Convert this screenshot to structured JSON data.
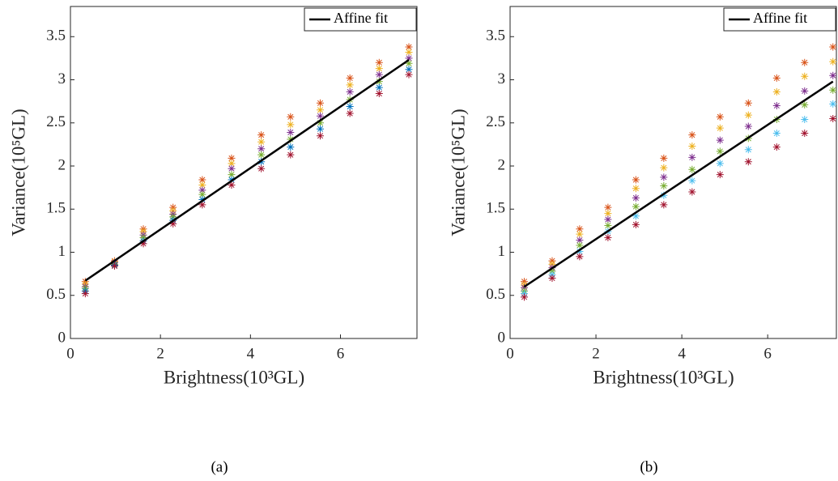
{
  "chart_data": [
    {
      "type": "scatter",
      "caption": "(a)",
      "xlabel": "Brightness(10³GL)",
      "ylabel": "Variance(10⁵GL)",
      "xlim": [
        0,
        7.7
      ],
      "ylim": [
        0,
        3.85
      ],
      "xticks": [
        0,
        2,
        4,
        6
      ],
      "yticks": [
        0,
        0.5,
        1,
        1.5,
        2,
        2.5,
        3,
        3.5
      ],
      "legend": "upper right",
      "box": true,
      "x": [
        0.33,
        0.98,
        1.62,
        2.28,
        2.93,
        3.58,
        4.24,
        4.89,
        5.55,
        6.21,
        6.86,
        7.52
      ],
      "series": [
        {
          "color": "#d95319",
          "values": [
            0.66,
            0.9,
            1.27,
            1.52,
            1.84,
            2.09,
            2.36,
            2.57,
            2.73,
            3.02,
            3.2,
            3.38
          ]
        },
        {
          "color": "#edb120",
          "values": [
            0.63,
            0.89,
            1.24,
            1.48,
            1.78,
            2.03,
            2.28,
            2.48,
            2.65,
            2.94,
            3.13,
            3.32
          ]
        },
        {
          "color": "#7e2f8e",
          "values": [
            0.6,
            0.88,
            1.2,
            1.44,
            1.72,
            1.97,
            2.2,
            2.39,
            2.58,
            2.86,
            3.06,
            3.25
          ]
        },
        {
          "color": "#77ac30",
          "values": [
            0.58,
            0.86,
            1.17,
            1.41,
            1.67,
            1.9,
            2.13,
            2.31,
            2.5,
            2.77,
            2.98,
            3.19
          ]
        },
        {
          "color": "#0072bd",
          "values": [
            0.55,
            0.85,
            1.13,
            1.37,
            1.61,
            1.84,
            2.05,
            2.22,
            2.43,
            2.69,
            2.91,
            3.12
          ]
        },
        {
          "color": "#a2142f",
          "values": [
            0.52,
            0.84,
            1.1,
            1.33,
            1.55,
            1.78,
            1.97,
            2.13,
            2.35,
            2.61,
            2.84,
            3.06
          ]
        },
        {
          "type": "line",
          "name": "Affine fit",
          "color": "#000000",
          "x": [
            0.33,
            7.52
          ],
          "values": [
            0.67,
            3.23
          ]
        }
      ]
    },
    {
      "type": "scatter",
      "caption": "(b)",
      "xlabel": "Brightness(10³GL)",
      "ylabel": "Variance(10⁵GL)",
      "xlim": [
        0,
        7.6
      ],
      "ylim": [
        0,
        3.85
      ],
      "xticks": [
        0,
        2,
        4,
        6
      ],
      "yticks": [
        0,
        0.5,
        1,
        1.5,
        2,
        2.5,
        3,
        3.5
      ],
      "legend": "upper right",
      "box": true,
      "x": [
        0.33,
        0.98,
        1.62,
        2.28,
        2.93,
        3.58,
        4.24,
        4.89,
        5.55,
        6.21,
        6.86,
        7.52
      ],
      "series": [
        {
          "color": "#d95319",
          "values": [
            0.66,
            0.9,
            1.27,
            1.52,
            1.84,
            2.09,
            2.36,
            2.57,
            2.73,
            3.02,
            3.2,
            3.38
          ]
        },
        {
          "color": "#edb120",
          "values": [
            0.62,
            0.86,
            1.21,
            1.45,
            1.74,
            1.98,
            2.23,
            2.44,
            2.59,
            2.86,
            3.04,
            3.21
          ]
        },
        {
          "color": "#7e2f8e",
          "values": [
            0.59,
            0.82,
            1.14,
            1.38,
            1.63,
            1.87,
            2.1,
            2.3,
            2.46,
            2.7,
            2.87,
            3.05
          ]
        },
        {
          "color": "#77ac30",
          "values": [
            0.55,
            0.78,
            1.08,
            1.31,
            1.53,
            1.77,
            1.96,
            2.17,
            2.32,
            2.54,
            2.71,
            2.88
          ]
        },
        {
          "color": "#4dbeee",
          "values": [
            0.52,
            0.74,
            1.01,
            1.24,
            1.42,
            1.66,
            1.83,
            2.03,
            2.19,
            2.38,
            2.54,
            2.72
          ]
        },
        {
          "color": "#a2142f",
          "values": [
            0.48,
            0.7,
            0.95,
            1.17,
            1.32,
            1.55,
            1.7,
            1.9,
            2.05,
            2.22,
            2.38,
            2.55
          ]
        },
        {
          "type": "line",
          "name": "Affine fit",
          "color": "#000000",
          "x": [
            0.33,
            7.52
          ],
          "values": [
            0.6,
            2.98
          ]
        }
      ]
    }
  ]
}
